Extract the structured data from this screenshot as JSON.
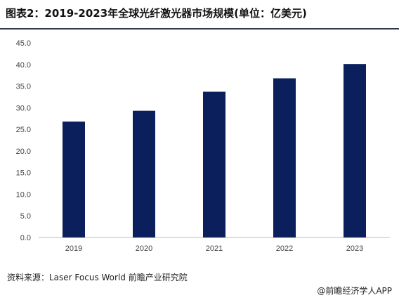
{
  "header": {
    "title": "图表2：2019-2023年全球光纤激光器市场规模(单位：亿美元)"
  },
  "footer": {
    "source": "资料来源：Laser Focus World 前瞻产业研究院",
    "brand": "@前瞻经济学人APP"
  },
  "chart_data": {
    "type": "bar",
    "title": "",
    "xlabel": "",
    "ylabel": "",
    "categories": [
      "2019",
      "2020",
      "2021",
      "2022",
      "2023"
    ],
    "values": [
      26.8,
      29.3,
      33.7,
      36.8,
      40.1
    ],
    "ylim": [
      0,
      45
    ],
    "yticks": [
      "0.0",
      "5.0",
      "10.0",
      "15.0",
      "20.0",
      "25.0",
      "30.0",
      "35.0",
      "40.0",
      "45.0"
    ],
    "grid": false,
    "legend": "none",
    "bar_color": "#0a1f5c",
    "axis_color": "#bbbbbb"
  }
}
